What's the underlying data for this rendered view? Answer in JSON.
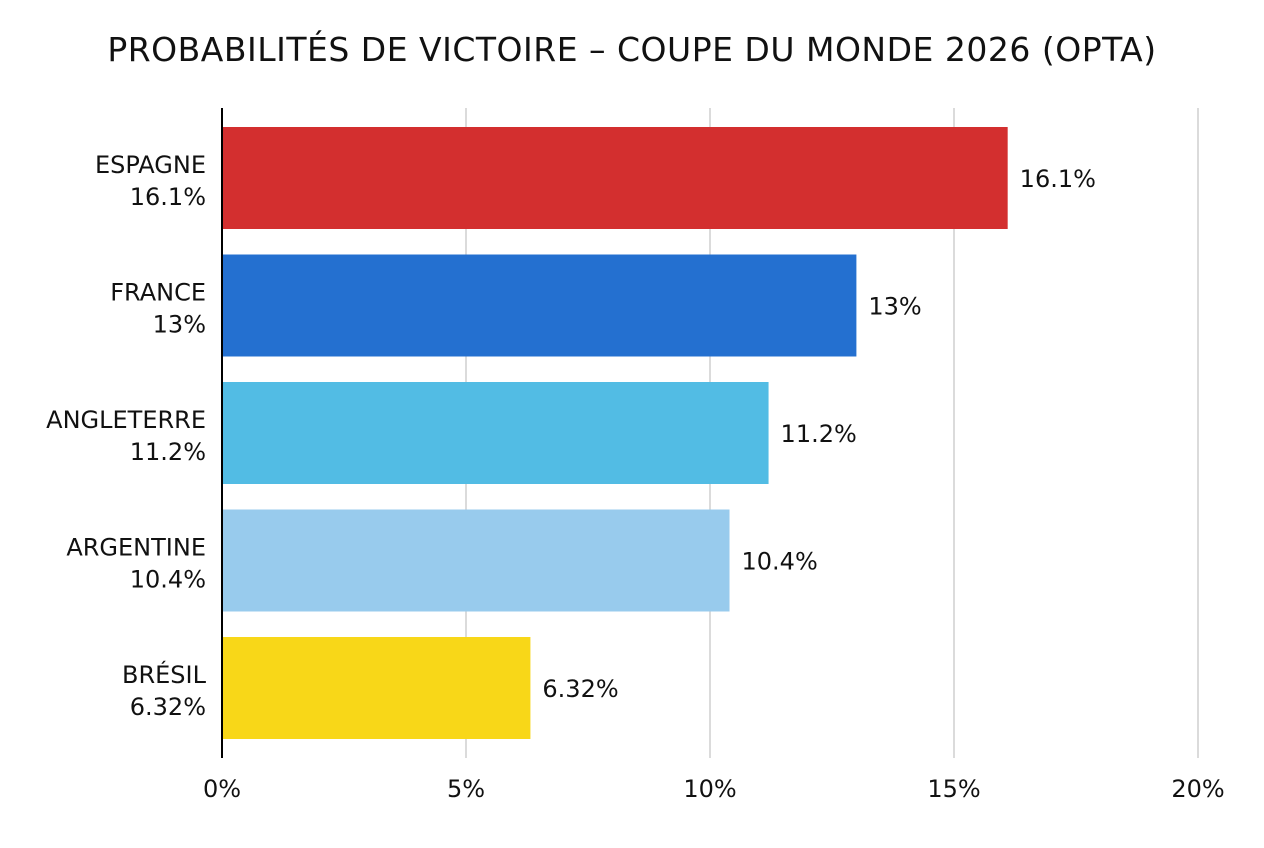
{
  "chart_data": {
    "type": "bar",
    "orientation": "horizontal",
    "title": "PROBABILITÉS DE VICTOIRE – COUPE DU MONDE 2026 (OPTA)",
    "categories": [
      "ESPAGNE",
      "FRANCE",
      "ANGLETERRE",
      "ARGENTINE",
      "BRÉSIL"
    ],
    "category_value_labels": [
      "16.1%",
      "13%",
      "11.2%",
      "10.4%",
      "6.32%"
    ],
    "values": [
      16.1,
      13,
      11.2,
      10.4,
      6.32
    ],
    "value_labels": [
      "16.1%",
      "13%",
      "11.2%",
      "10.4%",
      "6.32%"
    ],
    "colors": [
      "#d32f2f",
      "#2470d0",
      "#52bce4",
      "#98cbed",
      "#f8d718"
    ],
    "xlim": [
      0,
      20
    ],
    "xticks": [
      0,
      5,
      10,
      15,
      20
    ],
    "xtick_labels": [
      "0%",
      "5%",
      "10%",
      "15%",
      "20%"
    ],
    "grid": "vertical",
    "legend": "none"
  }
}
